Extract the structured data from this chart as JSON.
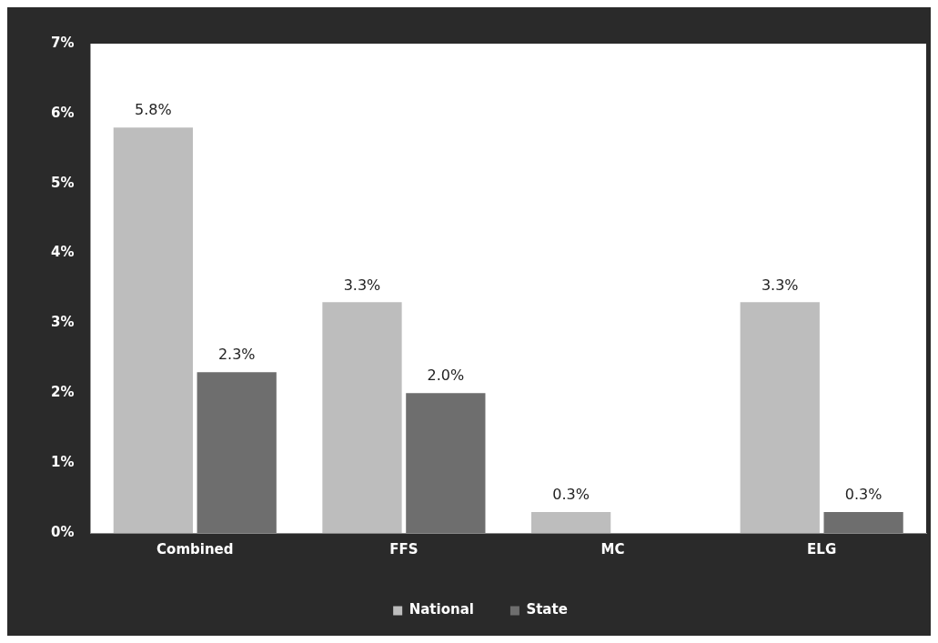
{
  "chart_data": {
    "type": "bar",
    "categories": [
      "Combined",
      "FFS",
      "MC",
      "ELG"
    ],
    "series": [
      {
        "name": "National",
        "color": "#bdbdbd",
        "values": [
          5.8,
          3.3,
          0.3,
          3.3
        ],
        "value_labels": [
          "5.8%",
          "3.3%",
          "0.3%",
          "3.3%"
        ]
      },
      {
        "name": "State",
        "color": "#6e6e6e",
        "values": [
          2.3,
          2.0,
          null,
          0.3
        ],
        "value_labels": [
          "2.3%",
          "2.0%",
          null,
          "0.3%"
        ]
      }
    ],
    "ylim": [
      0,
      7
    ],
    "yticks": [
      {
        "value": 0,
        "label": "0%"
      },
      {
        "value": 1,
        "label": "1%"
      },
      {
        "value": 2,
        "label": "2%"
      },
      {
        "value": 3,
        "label": "3%"
      },
      {
        "value": 4,
        "label": "4%"
      },
      {
        "value": 5,
        "label": "5%"
      },
      {
        "value": 6,
        "label": "6%"
      },
      {
        "value": 7,
        "label": "7%"
      }
    ],
    "grid": false,
    "legend": "bottom"
  }
}
